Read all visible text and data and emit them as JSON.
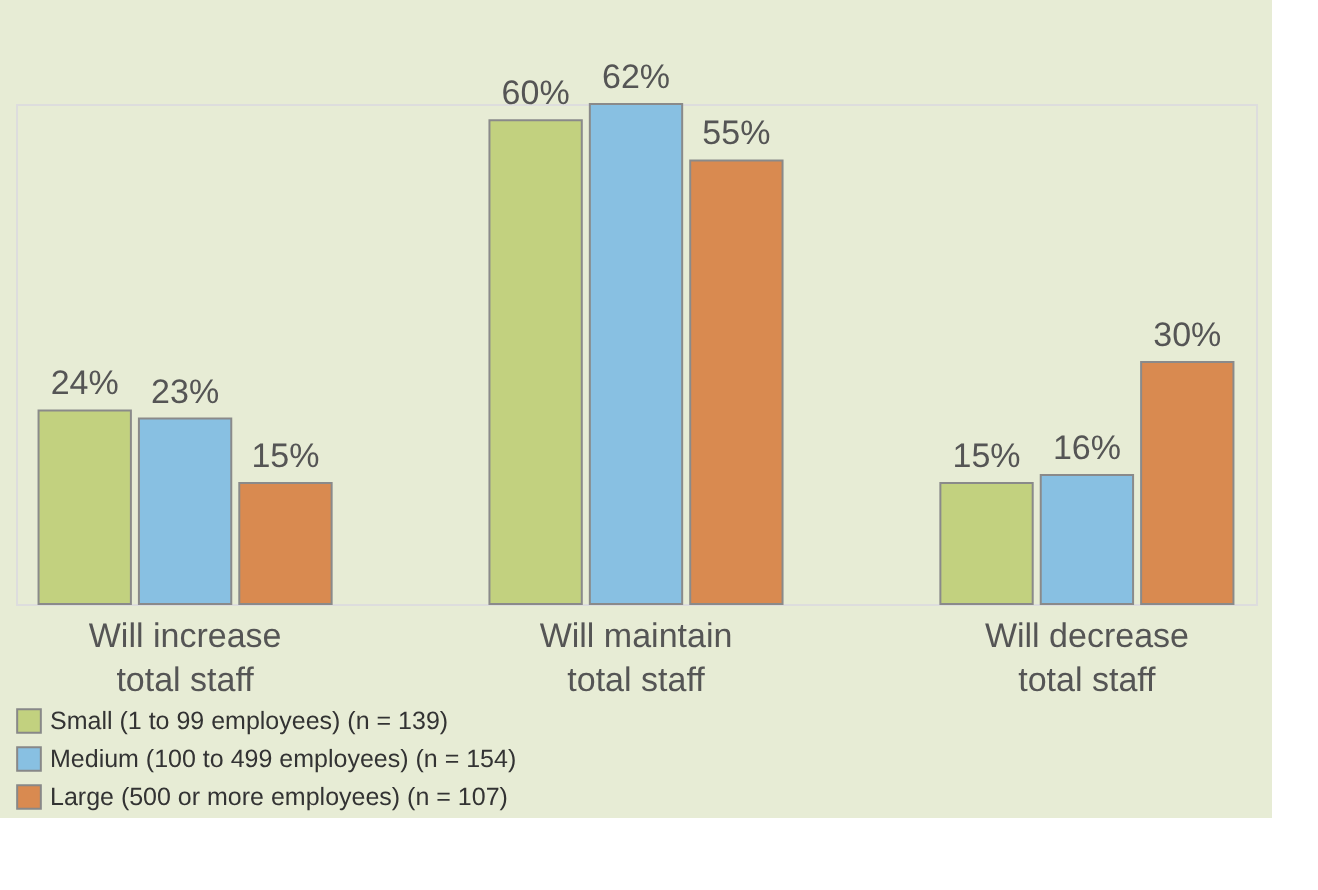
{
  "chart_data": {
    "type": "bar",
    "data_labels": true,
    "legend": "bottom left",
    "categories": [
      "Will increase\ntotal staff",
      "Will maintain\ntotal staff",
      "Will decrease\ntotal staff"
    ],
    "series": [
      {
        "name": "Small (1 to 99 employees) (n = 139)",
        "color": "#c2d17f",
        "values": [
          24,
          60,
          15
        ],
        "value_labels": [
          "24%",
          "60%",
          "15%"
        ]
      },
      {
        "name": "Medium (100 to 499 employees) (n = 154)",
        "color": "#88c0e2",
        "values": [
          23,
          62,
          16
        ],
        "value_labels": [
          "23%",
          "62%",
          "16%"
        ]
      },
      {
        "name": "Large (500 or more employees) (n = 107)",
        "color": "#d98a50",
        "values": [
          15,
          55,
          30
        ],
        "value_labels": [
          "15%",
          "55%",
          "30%"
        ]
      }
    ]
  }
}
